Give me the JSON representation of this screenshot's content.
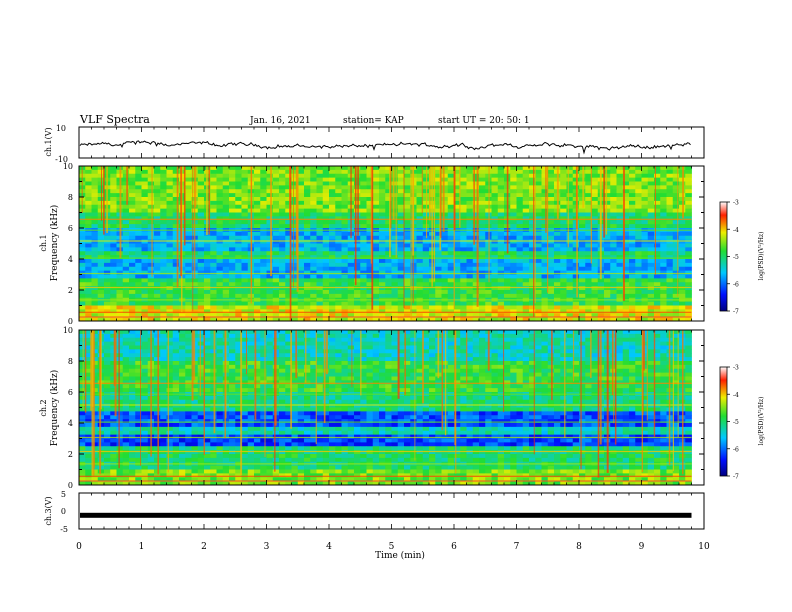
{
  "header": {
    "title": "VLF Spectra",
    "date": "Jan. 16, 2021",
    "station": "station= KAP",
    "start": "start  UT =   20: 50: 1"
  },
  "chart_data": [
    {
      "type": "line",
      "name": "ch1-waveform",
      "ylabel": "ch.1(V)",
      "ylim": [
        -10,
        10
      ],
      "y_ticks": [
        "10",
        "-10"
      ],
      "xlim": [
        0,
        10
      ],
      "description_values": "noisy trace around -2 V, range ~ -8 to 2"
    },
    {
      "type": "heatmap",
      "name": "ch1-spectrogram",
      "ylabel_top": "ch.1",
      "ylabel": "Frequency (kHz)",
      "ylim": [
        0,
        10
      ],
      "y_ticks": [
        "0",
        "2",
        "4",
        "6",
        "8",
        "10"
      ],
      "xlim": [
        0,
        9.8
      ],
      "colorbar": {
        "label": "log(PSD)(V²/Hz)",
        "range": [
          -7,
          -3
        ],
        "ticks": [
          "-3",
          "-4",
          "-5",
          "-6",
          "-7"
        ]
      }
    },
    {
      "type": "heatmap",
      "name": "ch2-spectrogram",
      "ylabel_top": "ch.2",
      "ylabel": "Frequency (kHz)",
      "ylim": [
        0,
        10
      ],
      "y_ticks": [
        "0",
        "2",
        "4",
        "6",
        "8",
        "10"
      ],
      "xlim": [
        0,
        9.8
      ],
      "colorbar": {
        "label": "log(PSD)(V²/Hz)",
        "range": [
          -7,
          -3
        ],
        "ticks": [
          "-3",
          "-4",
          "-5",
          "-6",
          "-7"
        ]
      }
    },
    {
      "type": "line",
      "name": "ch3-waveform",
      "ylabel": "ch.3(V)",
      "ylim": [
        -5,
        5
      ],
      "y_ticks": [
        "5",
        "0",
        "-5"
      ],
      "xlim": [
        0,
        10
      ],
      "values_approx": [
        -1.2,
        -1.2
      ]
    }
  ],
  "x_axis": {
    "label": "Time (min)",
    "ticks": [
      "0",
      "1",
      "2",
      "3",
      "4",
      "5",
      "6",
      "7",
      "8",
      "9",
      "10"
    ],
    "range": [
      0,
      10
    ]
  }
}
